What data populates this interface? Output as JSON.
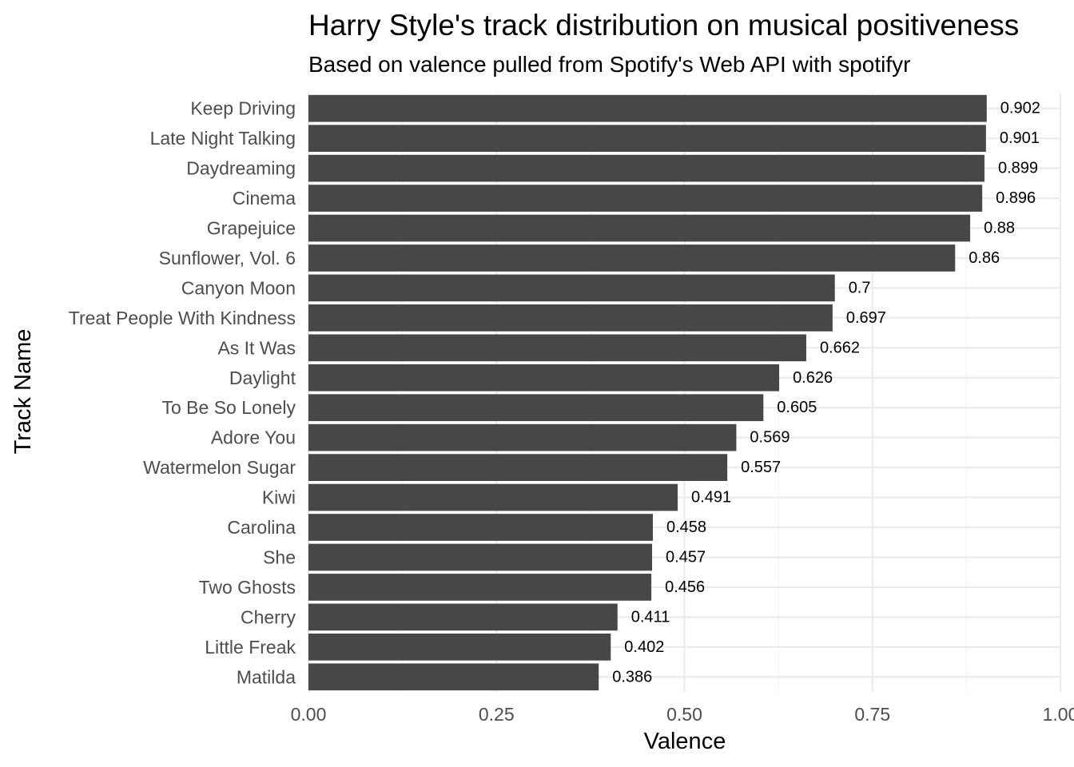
{
  "chart_data": {
    "type": "bar",
    "orientation": "horizontal",
    "title": "Harry Style's track distribution on musical positiveness",
    "subtitle": "Based on valence pulled from Spotify's Web API with spotifyr",
    "xlabel": "Valence",
    "ylabel": "Track Name",
    "xlim": [
      0,
      1
    ],
    "x_ticks": [
      "0.00",
      "0.25",
      "0.50",
      "0.75",
      "1.00"
    ],
    "grid": true,
    "bar_color": "#474747",
    "categories": [
      "Keep Driving",
      "Late Night Talking",
      "Daydreaming",
      "Cinema",
      "Grapejuice",
      "Sunflower, Vol. 6",
      "Canyon Moon",
      "Treat People With Kindness",
      "As It Was",
      "Daylight",
      "To Be So Lonely",
      "Adore You",
      "Watermelon Sugar",
      "Kiwi",
      "Carolina",
      "She",
      "Two Ghosts",
      "Cherry",
      "Little Freak",
      "Matilda"
    ],
    "values": [
      0.902,
      0.901,
      0.899,
      0.896,
      0.88,
      0.86,
      0.7,
      0.697,
      0.662,
      0.626,
      0.605,
      0.569,
      0.557,
      0.491,
      0.458,
      0.457,
      0.456,
      0.411,
      0.402,
      0.386
    ],
    "value_labels": [
      "0.902",
      "0.901",
      "0.899",
      "0.896",
      "0.88",
      "0.86",
      "0.7",
      "0.697",
      "0.662",
      "0.626",
      "0.605",
      "0.569",
      "0.557",
      "0.491",
      "0.458",
      "0.457",
      "0.456",
      "0.411",
      "0.402",
      "0.386"
    ]
  }
}
